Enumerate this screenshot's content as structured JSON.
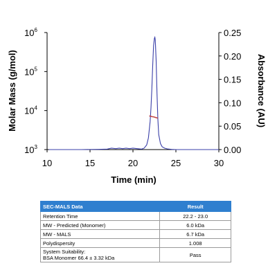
{
  "chart_data": {
    "type": "line",
    "xlabel": "Time (min)",
    "ylabel_left": "Molar Mass (g/mol)",
    "ylabel_right": "Absorbance (AU)",
    "x_range": [
      10,
      30
    ],
    "x_ticks": [
      "10",
      "15",
      "20",
      "25",
      "30"
    ],
    "left_axis_scale": "log",
    "left_range": [
      1000,
      1000000
    ],
    "left_ticks": [
      {
        "base": "10",
        "exp": "3"
      },
      {
        "base": "10",
        "exp": "4"
      },
      {
        "base": "10",
        "exp": "5"
      },
      {
        "base": "10",
        "exp": "6"
      }
    ],
    "right_range": [
      0,
      0.25
    ],
    "right_ticks": [
      "0.00",
      "0.05",
      "0.10",
      "0.15",
      "0.20",
      "0.25"
    ],
    "grid": false,
    "series": [
      {
        "color": "#3a3fa8",
        "x": [
          10.2,
          14.0,
          16.0,
          17.0,
          17.5,
          18.0,
          18.4,
          18.8,
          19.2,
          19.6,
          20.0,
          20.5,
          21.0,
          21.3,
          21.6,
          21.8,
          22.0,
          22.1,
          22.2,
          22.3,
          22.4,
          22.5,
          22.55,
          22.6,
          22.7,
          22.8,
          22.9,
          23.0,
          23.2,
          23.4,
          23.7,
          24.0,
          24.5,
          25.0,
          26.0,
          28.0,
          30.0
        ],
        "y": [
          0.0,
          0.0,
          0.0005,
          0.001,
          0.003,
          0.002,
          0.003,
          0.002,
          0.003,
          0.002,
          0.003,
          0.002,
          0.001,
          0.003,
          0.01,
          0.025,
          0.06,
          0.09,
          0.13,
          0.18,
          0.222,
          0.238,
          0.24,
          0.234,
          0.19,
          0.12,
          0.065,
          0.032,
          0.013,
          0.006,
          0.003,
          0.0015,
          0.0005,
          0.0,
          0.0,
          0.0,
          0.0
        ]
      },
      {
        "color": "#c04545",
        "x": [
          21.9,
          22.0,
          22.2,
          22.4,
          22.6,
          22.8,
          22.9
        ],
        "y": [
          7300,
          7200,
          7000,
          6900,
          6700,
          6500,
          6400
        ]
      }
    ]
  },
  "table": {
    "headers": [
      "SEC-MALS Data",
      "Result"
    ],
    "rows": [
      {
        "param": [
          "Retention Time"
        ],
        "value": "22.2 - 23.0"
      },
      {
        "param": [
          "MW - Predicted (Monomer)"
        ],
        "value": "6.0 kDa"
      },
      {
        "param": [
          "MW - MALS"
        ],
        "value": "6.7 kDa"
      },
      {
        "param": [
          "Polydispersity"
        ],
        "value": "1.008"
      },
      {
        "param": [
          "System Suitability:",
          "BSA Monomer 66.4 ± 3.32 kDa"
        ],
        "value": "Pass"
      }
    ]
  }
}
